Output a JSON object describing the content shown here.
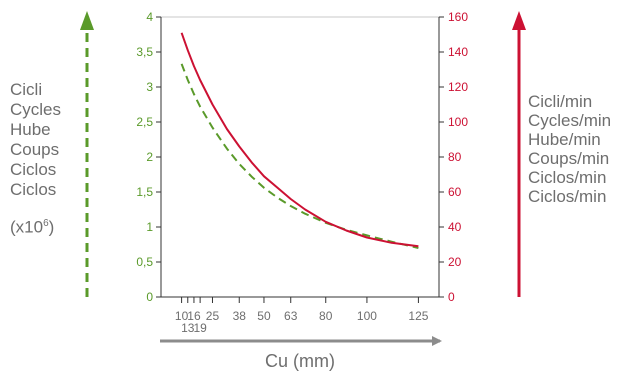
{
  "chart_data": {
    "type": "line",
    "xlabel": "Cu (mm)",
    "x_ticks_row1": [
      "10",
      "16",
      "25",
      "38",
      "50",
      "63",
      "80",
      "100",
      "125"
    ],
    "x_ticks_row2": [
      "13",
      "19"
    ],
    "x_tick_values_row1": [
      10,
      16,
      25,
      38,
      50,
      63,
      80,
      100,
      125
    ],
    "x_tick_values_row2": [
      13,
      19
    ],
    "x_minor_ticks": [
      10,
      13,
      16,
      19,
      25,
      38,
      50,
      63,
      80,
      100,
      125
    ],
    "xlim": [
      0,
      135
    ],
    "y_left": {
      "label_lines": [
        "Cicli",
        "Cycles",
        "Hube",
        "Coups",
        "Ciclos",
        "Ciclos"
      ],
      "unit_base": "(x10",
      "unit_exp": "6",
      "unit_close": ")",
      "ticks": [
        "0",
        "0,5",
        "1",
        "1,5",
        "2",
        "2,5",
        "3",
        "3,5",
        "4"
      ],
      "tick_values": [
        0,
        0.5,
        1,
        1.5,
        2,
        2.5,
        3,
        3.5,
        4
      ],
      "ylim": [
        0,
        4
      ],
      "color": "#5a9a2a"
    },
    "y_right": {
      "label_lines": [
        "Cicli/min",
        "Cycles/min",
        "Hube/min",
        "Coups/min",
        "Ciclos/min",
        "Ciclos/min"
      ],
      "ticks": [
        "0",
        "20",
        "40",
        "60",
        "80",
        "100",
        "120",
        "140",
        "160"
      ],
      "tick_values": [
        0,
        20,
        40,
        60,
        80,
        100,
        120,
        140,
        160
      ],
      "ylim": [
        0,
        160
      ],
      "color": "#cc1133"
    },
    "series": [
      {
        "axis": "left",
        "style": "dashed",
        "color": "#5a9a2a",
        "x": [
          10,
          13,
          16,
          19,
          25,
          32,
          38,
          44,
          50,
          57,
          63,
          70,
          80,
          90,
          100,
          112,
          125
        ],
        "values": [
          3.33,
          3.1,
          2.9,
          2.72,
          2.42,
          2.12,
          1.9,
          1.72,
          1.56,
          1.41,
          1.3,
          1.19,
          1.06,
          0.96,
          0.88,
          0.79,
          0.7
        ]
      },
      {
        "axis": "right",
        "style": "solid",
        "color": "#cc1133",
        "x": [
          10,
          13,
          16,
          19,
          25,
          32,
          38,
          44,
          50,
          57,
          63,
          70,
          80,
          90,
          100,
          112,
          125
        ],
        "values": [
          151,
          141,
          132,
          124,
          110,
          96,
          86,
          77,
          69,
          62,
          56,
          50,
          43,
          38,
          34,
          31,
          29
        ]
      }
    ],
    "grid": false
  }
}
